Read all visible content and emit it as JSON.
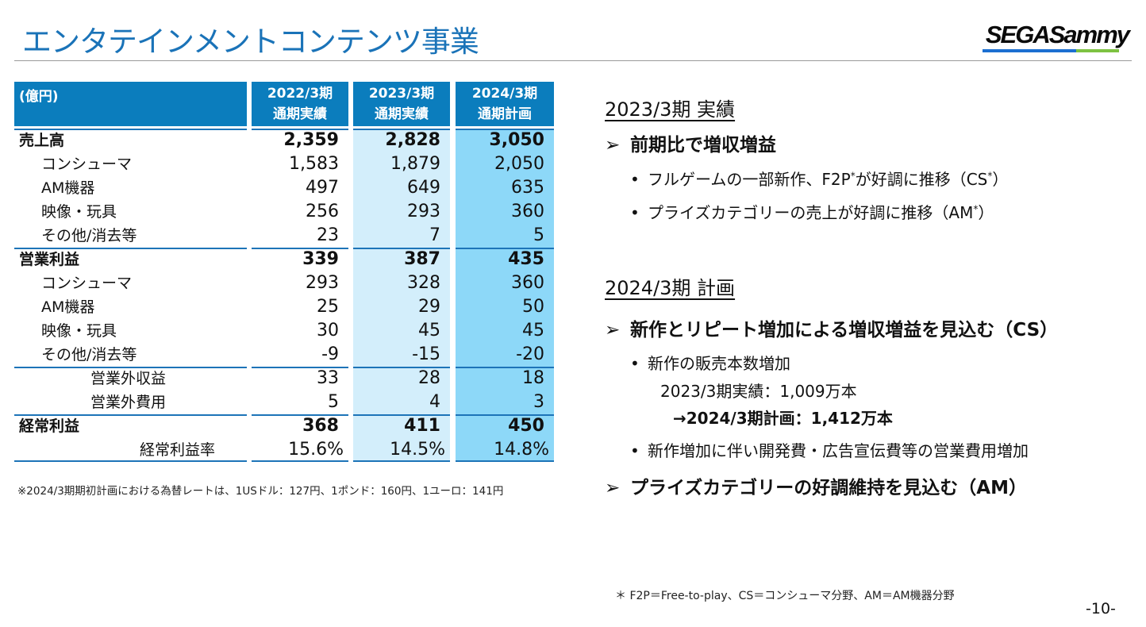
{
  "page": {
    "title": "エンタテインメントコンテンツ事業",
    "logo_text": "SEGASammy",
    "page_number": "-10-"
  },
  "table": {
    "unit": "(億円)",
    "columns": [
      {
        "line1": "2022/3期",
        "line2": "通期実績"
      },
      {
        "line1": "2023/3期",
        "line2": "通期実績"
      },
      {
        "line1": "2024/3期",
        "line2": "通期計画"
      }
    ],
    "rows": [
      {
        "label": "売上高",
        "values": [
          "2,359",
          "2,828",
          "3,050"
        ]
      },
      {
        "label": "コンシューマ",
        "values": [
          "1,583",
          "1,879",
          "2,050"
        ]
      },
      {
        "label": "AM機器",
        "values": [
          "497",
          "649",
          "635"
        ]
      },
      {
        "label": "映像・玩具",
        "values": [
          "256",
          "293",
          "360"
        ]
      },
      {
        "label": "その他/消去等",
        "values": [
          "23",
          "7",
          "5"
        ]
      },
      {
        "label": "営業利益",
        "values": [
          "339",
          "387",
          "435"
        ]
      },
      {
        "label": "コンシューマ",
        "values": [
          "293",
          "328",
          "360"
        ]
      },
      {
        "label": "AM機器",
        "values": [
          "25",
          "29",
          "50"
        ]
      },
      {
        "label": "映像・玩具",
        "values": [
          "30",
          "45",
          "45"
        ]
      },
      {
        "label": "その他/消去等",
        "values": [
          "-9",
          "-15",
          "-20"
        ]
      },
      {
        "label": "営業外収益",
        "values": [
          "33",
          "28",
          "18"
        ]
      },
      {
        "label": "営業外費用",
        "values": [
          "5",
          "4",
          "3"
        ]
      },
      {
        "label": "経常利益",
        "values": [
          "368",
          "411",
          "450"
        ]
      },
      {
        "label": "経常利益率",
        "values": [
          "15.6%",
          "14.5%",
          "14.8%"
        ]
      }
    ],
    "footnote": "※2024/3期期初計画における為替レートは、1USドル：127円、1ポンド：160円、1ユーロ：141円"
  },
  "right": {
    "section1": {
      "heading": "2023/3期 実績",
      "point": "前期比で増収増益",
      "bullets": [
        {
          "text_a": "フルゲームの一部新作、F2P",
          "sup_a": "*",
          "text_b": "が好調に推移（CS",
          "sup_b": "*",
          "text_c": "）"
        },
        {
          "text_a": "プライズカテゴリーの売上が好調に推移（AM",
          "sup_a": "*",
          "text_b": "）"
        }
      ]
    },
    "section2": {
      "heading": "2024/3期 計画",
      "point1": "新作とリピート増加による増収増益を見込む（CS）",
      "bullet1": "新作の販売本数増加",
      "sub1": "2023/3期実績：1,009万本",
      "sub2_arrow": "→",
      "sub2": "2024/3期計画：1,412万本",
      "bullet2": "新作増加に伴い開発費・広告宣伝費等の営業費用増加",
      "point2": "プライズカテゴリーの好調維持を見込む（AM）"
    },
    "arrow_glyph": "➢",
    "bullet_glyph": "•",
    "footnote": "＊ F2P＝Free-to-play、CS＝コンシューマ分野、AM＝AM機器分野"
  }
}
